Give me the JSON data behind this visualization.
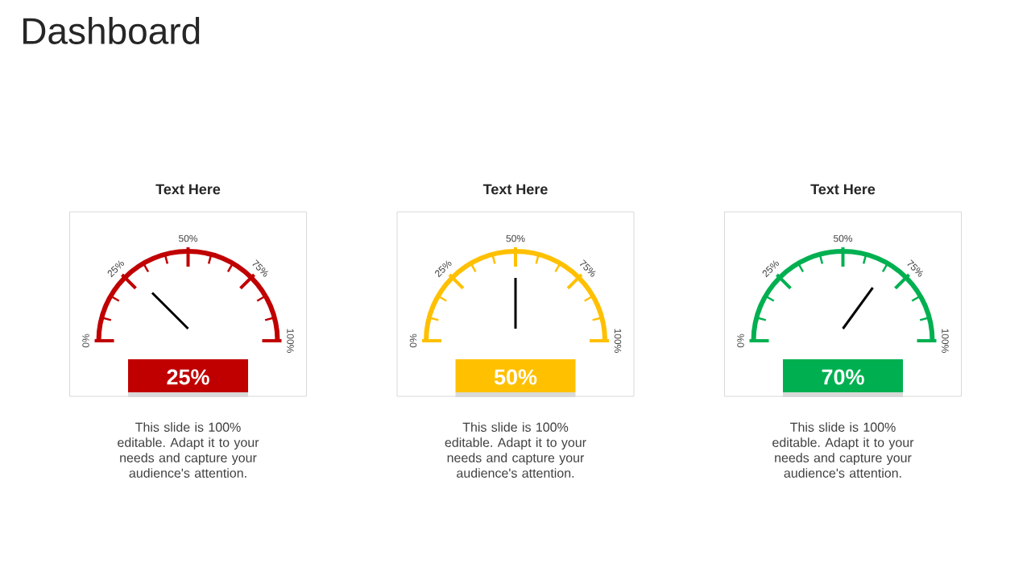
{
  "chart_data": {
    "type": "other",
    "title": "Dashboard",
    "categories": [
      "Text Here",
      "Text Here",
      "Text Here"
    ],
    "values": [
      25,
      50,
      70
    ],
    "value_labels": [
      "25%",
      "50%",
      "70%"
    ],
    "colors": [
      "#c00000",
      "#ffc000",
      "#00b050"
    ],
    "annotations": [
      "This slide is 100% editable. Adapt it to your needs and capture your audience's attention.",
      "This slide is 100% editable. Adapt it to your needs and capture your audience's attention.",
      "This slide is 100% editable. Adapt it to your needs and capture your audience's attention.",
      "0%",
      "25%",
      "50%",
      "75%",
      "100%"
    ]
  }
}
